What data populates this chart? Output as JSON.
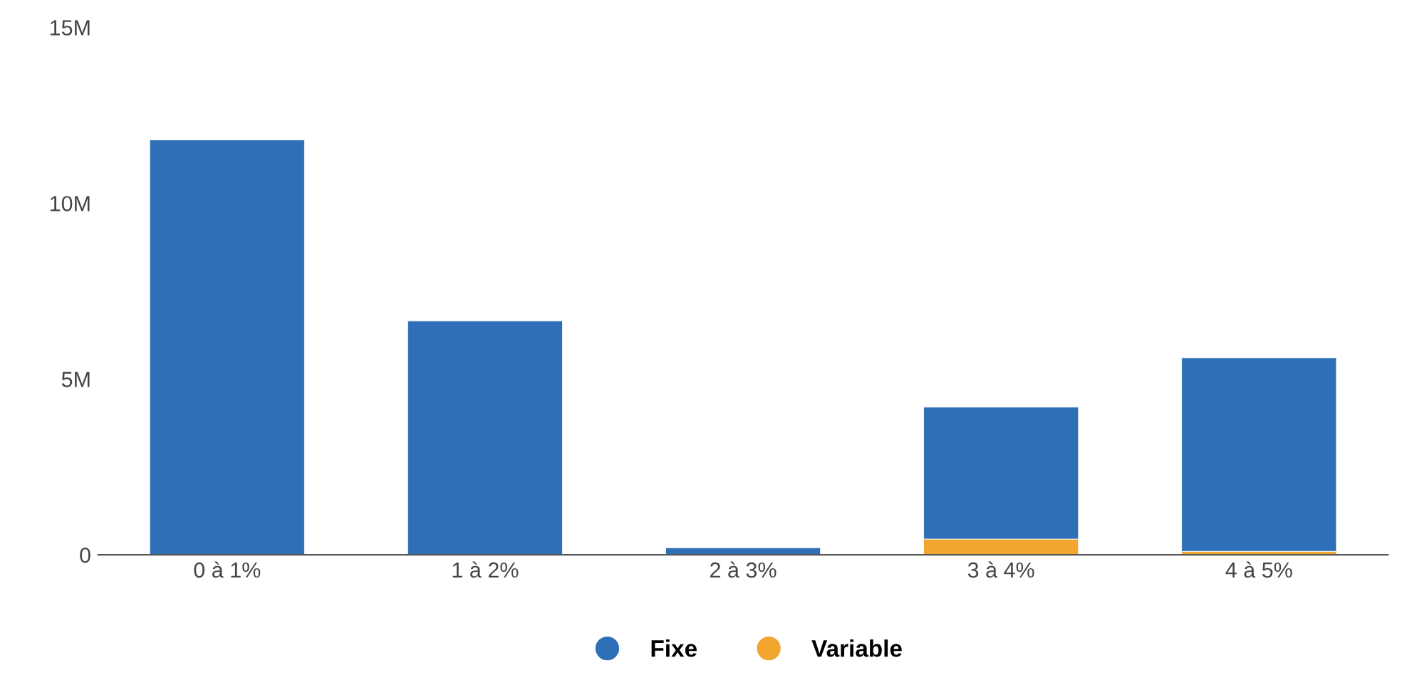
{
  "chart_data": {
    "type": "bar",
    "stacked": true,
    "categories": [
      "0 à 1%",
      "1 à 2%",
      "2 à 3%",
      "3 à 4%",
      "4 à 5%"
    ],
    "series": [
      {
        "name": "Variable",
        "color": "#f2a52f",
        "values": [
          0,
          0,
          0,
          0.45,
          0.1
        ]
      },
      {
        "name": "Fixe",
        "color": "#2f6fb8",
        "values": [
          11.8,
          6.65,
          0.2,
          3.75,
          5.5
        ]
      }
    ],
    "ylim": [
      0,
      15
    ],
    "yticks": [
      {
        "value": 0,
        "label": "0"
      },
      {
        "value": 5,
        "label": "5M"
      },
      {
        "value": 10,
        "label": "10M"
      },
      {
        "value": 15,
        "label": "15M"
      }
    ],
    "grid": false,
    "legend": "bottom"
  }
}
